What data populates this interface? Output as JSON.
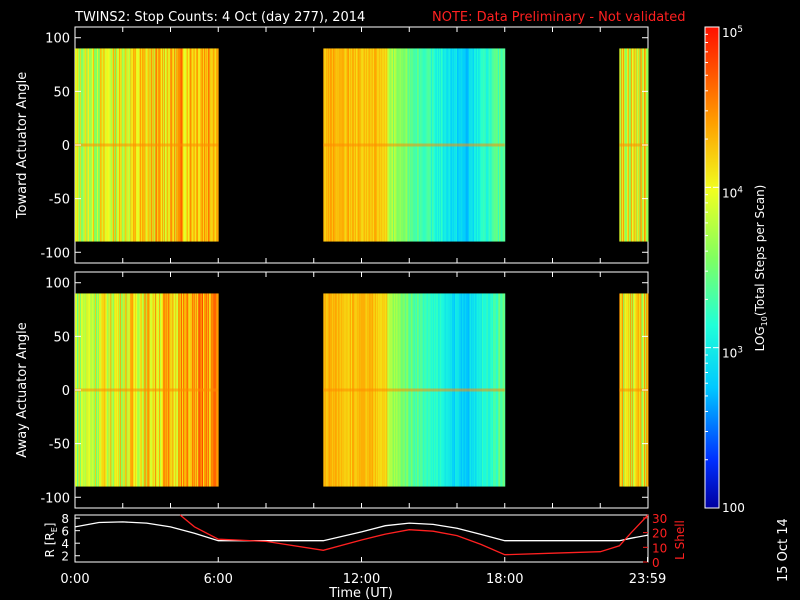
{
  "title": "TWINS2: Stop Counts:  4 Oct (day 277), 2014",
  "note": "NOTE: Data Preliminary - Not validated",
  "colors": {
    "red": "#ff2020",
    "white": "#ffffff",
    "bg": "#000000"
  },
  "chart_data": [
    {
      "type": "heatmap",
      "name": "toward",
      "ylabel": "Toward Actuator Angle",
      "ylim": [
        -110,
        110
      ],
      "yticks": [
        "100",
        "50",
        "0",
        "-50",
        "-100"
      ],
      "ytick_values": [
        100,
        50,
        0,
        -50,
        -100
      ],
      "xlim": [
        0,
        24
      ],
      "data_ranges_hours": [
        [
          0,
          6
        ],
        [
          10.4,
          18
        ],
        [
          22.8,
          24
        ]
      ],
      "angle_range": [
        -90,
        90
      ]
    },
    {
      "type": "heatmap",
      "name": "away",
      "ylabel": "Away Actuator Angle",
      "ylim": [
        -110,
        110
      ],
      "yticks": [
        "100",
        "50",
        "0",
        "-50",
        "-100"
      ],
      "ytick_values": [
        100,
        50,
        0,
        -50,
        -100
      ],
      "xlim": [
        0,
        24
      ],
      "data_ranges_hours": [
        [
          0,
          6
        ],
        [
          10.4,
          18
        ],
        [
          22.8,
          24
        ]
      ],
      "angle_range": [
        -90,
        90
      ]
    },
    {
      "type": "line",
      "name": "orbit",
      "ylabel_left": "R [R",
      "ylabel_left_sub": "E",
      "ylabel_left_end": "]",
      "ylabel_right": "L Shell",
      "left_ticks": [
        "8",
        "6",
        "4",
        "2"
      ],
      "left_tick_values": [
        8,
        6,
        4,
        2
      ],
      "left_ylim": [
        1,
        8.5
      ],
      "right_ticks": [
        "30",
        "20",
        "10",
        "0"
      ],
      "right_tick_values": [
        30,
        20,
        10,
        0
      ],
      "right_ylim": [
        0,
        32
      ],
      "xlabels": [
        "0:00",
        "6:00",
        "12:00",
        "18:00",
        "23:59"
      ],
      "xlabel_hours": [
        0,
        6,
        12,
        18,
        23.98
      ],
      "xlabel": "Time (UT)",
      "series": [
        {
          "name": "R",
          "color": "#ffffff",
          "x": [
            0,
            1,
            2,
            3,
            4,
            5,
            6,
            8,
            10.4,
            12,
            13,
            14,
            15,
            16,
            17,
            18,
            20,
            22,
            22.8,
            23.3,
            24
          ],
          "y": [
            6.6,
            7.3,
            7.4,
            7.2,
            6.6,
            5.6,
            4.4,
            4.4,
            4.4,
            5.8,
            6.8,
            7.2,
            7.0,
            6.4,
            5.4,
            4.4,
            4.4,
            4.4,
            4.4,
            4.8,
            5.3
          ]
        },
        {
          "name": "L Shell",
          "color": "#ff2020",
          "x": [
            4.4,
            5,
            6,
            8,
            10.4,
            12,
            13,
            14,
            15,
            16,
            17,
            18,
            20,
            22,
            22.8,
            23.3,
            24
          ],
          "y": [
            32,
            24,
            15.5,
            14,
            8,
            15,
            19,
            22,
            21,
            18,
            12,
            5,
            6,
            7,
            11,
            20,
            32
          ]
        }
      ]
    },
    {
      "type": "colorbar",
      "label": "LOG",
      "label_sub": "10",
      "label_end": "(Total Steps per Scan)",
      "tick_main": [
        "10",
        "10",
        "10",
        "100"
      ],
      "tick_exp": [
        "5",
        "4",
        "3",
        ""
      ],
      "tick_values": [
        5,
        4,
        3,
        2
      ],
      "range": [
        2,
        5
      ]
    }
  ],
  "footer_date": "15 Oct 14"
}
